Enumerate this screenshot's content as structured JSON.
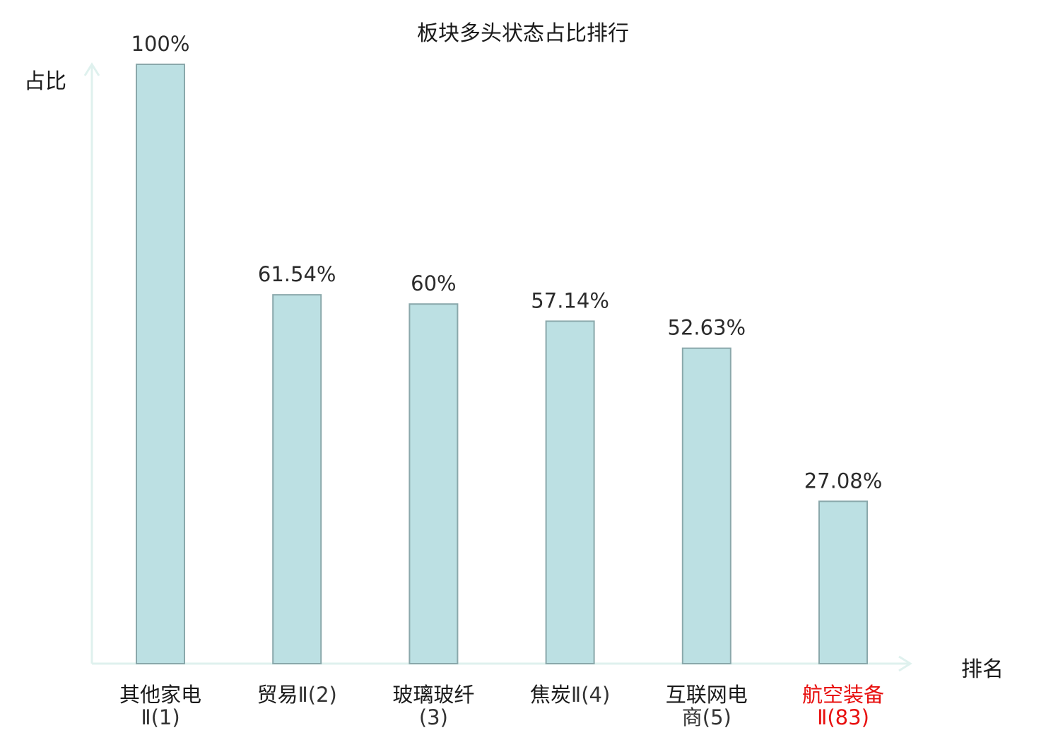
{
  "chart_data": {
    "type": "bar",
    "title": "板块多头状态占比排行",
    "ylabel": "占比",
    "xlabel": "排名",
    "ylim": [
      0,
      100
    ],
    "grid": false,
    "categories": [
      {
        "name": "其他家电",
        "suffix": "Ⅱ(1)",
        "highlight": false
      },
      {
        "name": "贸易",
        "suffix": "Ⅱ(2)",
        "highlight": false
      },
      {
        "name": "玻璃玻纤",
        "suffix": "(3)",
        "highlight": false
      },
      {
        "name": "焦炭",
        "suffix": "Ⅱ(4)",
        "highlight": false
      },
      {
        "name": "互联网电",
        "suffix": "商(5)",
        "highlight": false
      },
      {
        "name": "航空装备",
        "suffix": "Ⅱ(83)",
        "highlight": true
      }
    ],
    "values": [
      100,
      61.54,
      60,
      57.14,
      52.63,
      27.08
    ],
    "value_labels": [
      "100%",
      "61.54%",
      "60%",
      "57.14%",
      "52.63%",
      "27.08%"
    ]
  },
  "colors": {
    "bar_fill": "#bce0e3",
    "bar_stroke": "#8aa8ab",
    "axis": "#dff1ee",
    "highlight": "#e8100f",
    "label": "#2b2b2b"
  }
}
